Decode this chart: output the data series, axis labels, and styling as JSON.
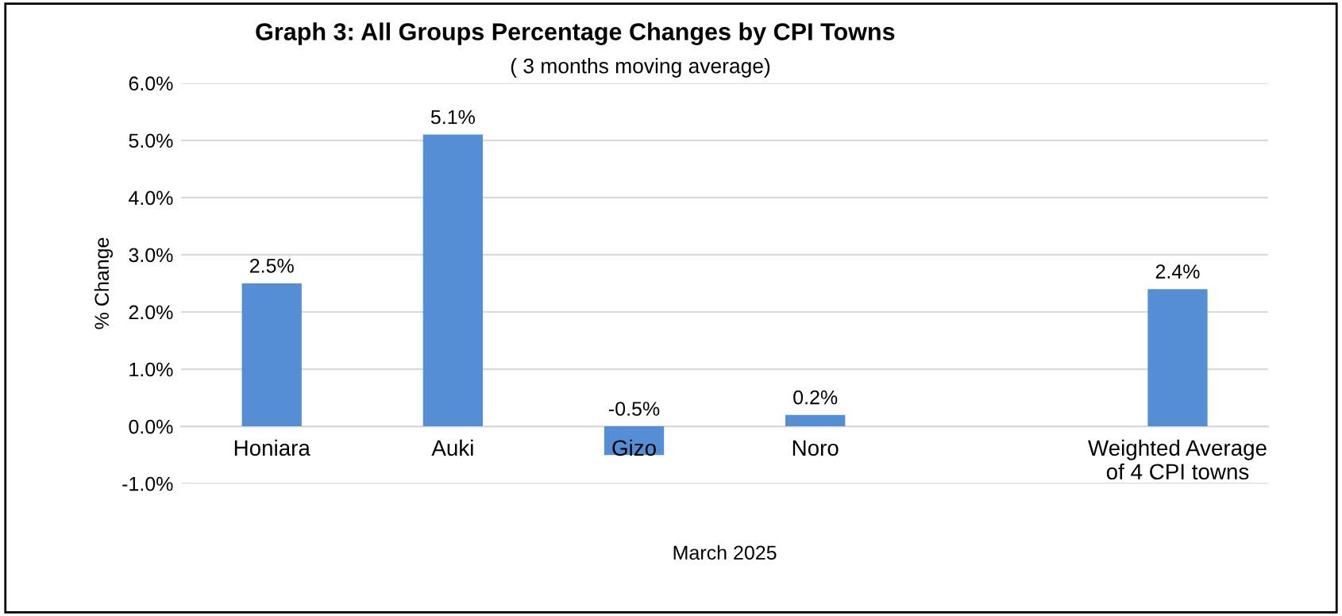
{
  "chart_data": {
    "type": "bar",
    "title": "Graph 3: All Groups Percentage Changes by CPI Towns",
    "subtitle": "( 3 months moving average)",
    "ylabel": "% Change",
    "xlabel": "March 2025",
    "categories": [
      "Honiara",
      "Auki",
      "Gizo",
      "Noro",
      null,
      "Weighted Average\nof 4 CPI towns"
    ],
    "values": [
      2.5,
      5.1,
      -0.5,
      0.2,
      null,
      2.4
    ],
    "value_labels": [
      "2.5%",
      "5.1%",
      "-0.5%",
      "0.2%",
      null,
      "2.4%"
    ],
    "color": "#558ed5",
    "ylim": [
      -1.0,
      6.0
    ],
    "yticks": [
      {
        "value": -1.0,
        "label": "-1.0%"
      },
      {
        "value": 0.0,
        "label": "0.0%"
      },
      {
        "value": 1.0,
        "label": "1.0%"
      },
      {
        "value": 2.0,
        "label": "2.0%"
      },
      {
        "value": 3.0,
        "label": "3.0%"
      },
      {
        "value": 4.0,
        "label": "4.0%"
      },
      {
        "value": 5.0,
        "label": "5.0%"
      },
      {
        "value": 6.0,
        "label": "6.0%"
      }
    ],
    "grid": "y",
    "legend": false
  }
}
